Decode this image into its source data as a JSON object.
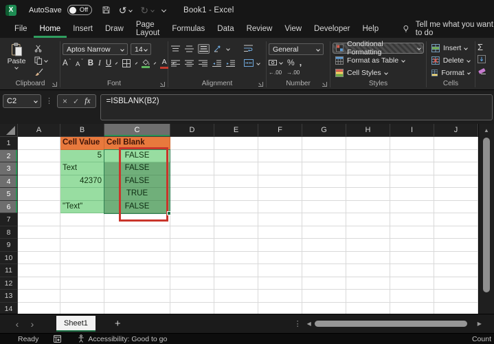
{
  "titlebar": {
    "autosave_label": "AutoSave",
    "autosave_state": "Off",
    "document_title": "Book1 - Excel"
  },
  "menubar": {
    "tabs": [
      "File",
      "Home",
      "Insert",
      "Draw",
      "Page Layout",
      "Formulas",
      "Data",
      "Review",
      "View",
      "Developer",
      "Help"
    ],
    "active_tab": "Home",
    "search_hint": "Tell me what you want to do"
  },
  "icons": {
    "undo": "↺",
    "redo": "↻",
    "ellipsis_v": "⋮",
    "scroll_up": "▲",
    "scroll_left": "◀",
    "scroll_right": "▶",
    "prev_sheet": "‹",
    "next_sheet": "›"
  },
  "ribbon": {
    "clipboard": {
      "group_label": "Clipboard",
      "paste_label": "Paste"
    },
    "font": {
      "group_label": "Font",
      "font_name": "Aptos Narrow",
      "font_size": "14",
      "bold": "B",
      "italic": "I",
      "underline": "U",
      "grow_font": "A",
      "shrink_font": "A",
      "font_color_letter": "A"
    },
    "alignment": {
      "group_label": "Alignment"
    },
    "number": {
      "group_label": "Number",
      "format_value": "General",
      "percent": "%",
      "comma": ",",
      "increase_decimal": "←.00",
      "decrease_decimal": "→.00"
    },
    "styles": {
      "group_label": "Styles",
      "conditional_formatting": "Conditional Formatting",
      "format_as_table": "Format as Table",
      "cell_styles": "Cell Styles"
    },
    "cells": {
      "group_label": "Cells",
      "insert": "Insert",
      "delete": "Delete",
      "format": "Format"
    },
    "editing": {
      "autosum": "Σ"
    }
  },
  "formula_bar": {
    "name_box": "C2",
    "cancel": "×",
    "enter": "✓",
    "insert_function": "fx",
    "formula": "=ISBLANK(B2)"
  },
  "grid": {
    "columns": [
      "A",
      "B",
      "C",
      "D",
      "E",
      "F",
      "G",
      "H",
      "I",
      "J"
    ],
    "selected_column": "C",
    "rows": [
      1,
      2,
      3,
      4,
      5,
      6,
      7,
      8,
      9,
      10,
      11,
      12,
      13,
      14
    ],
    "selected_rows": [
      2,
      3,
      4,
      5,
      6
    ],
    "selection": {
      "active_cell": "C2",
      "range": "C2:C6"
    },
    "annotation": {
      "type": "red-box",
      "range": "C2:C6"
    },
    "cells": [
      {
        "col": "B",
        "row": 1,
        "value": "Cell Value",
        "fill": "orange",
        "align": "left",
        "bold": true
      },
      {
        "col": "C",
        "row": 1,
        "value": "Cell Blank",
        "fill": "orange",
        "align": "left",
        "bold": true
      },
      {
        "col": "B",
        "row": 2,
        "value": "5",
        "fill": "light",
        "align": "right"
      },
      {
        "col": "C",
        "row": 2,
        "value": "FALSE",
        "fill": "light",
        "align": "center"
      },
      {
        "col": "B",
        "row": 3,
        "value": "Text",
        "fill": "light",
        "align": "left"
      },
      {
        "col": "C",
        "row": 3,
        "value": "FALSE",
        "fill": "dark",
        "align": "center"
      },
      {
        "col": "B",
        "row": 4,
        "value": "42370",
        "fill": "light",
        "align": "right"
      },
      {
        "col": "C",
        "row": 4,
        "value": "FALSE",
        "fill": "dark",
        "align": "center"
      },
      {
        "col": "B",
        "row": 5,
        "value": "",
        "fill": "light",
        "align": "left"
      },
      {
        "col": "C",
        "row": 5,
        "value": "TRUE",
        "fill": "dark",
        "align": "center"
      },
      {
        "col": "B",
        "row": 6,
        "value": "\"Text\"",
        "fill": "light",
        "align": "left"
      },
      {
        "col": "C",
        "row": 6,
        "value": "FALSE",
        "fill": "dark",
        "align": "center"
      }
    ]
  },
  "sheetbar": {
    "sheet_name": "Sheet1",
    "new_sheet": "+"
  },
  "statusbar": {
    "mode": "Ready",
    "accessibility": "Accessibility: Good to go",
    "right_label": "Count"
  },
  "colors": {
    "accent_green": "#2a9153",
    "selection_green": "#1d7044",
    "annotation_red": "#c9352b",
    "header_orange": "#e8793d",
    "cell_light_green": "#98dda1",
    "cell_dark_green": "#70af7a"
  }
}
